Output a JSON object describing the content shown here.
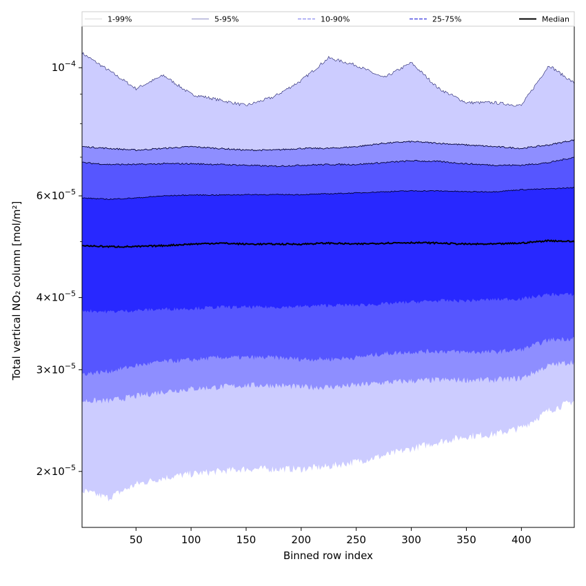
{
  "chart_data": {
    "type": "area",
    "title": "",
    "xlabel": "Binned row index",
    "ylabel": "Total vertical NO₂ column [mol/m²]",
    "yscale": "log",
    "xlim": [
      1,
      448
    ],
    "ylim": [
      1.6e-05,
      0.000118
    ],
    "grid": false,
    "legend_position": "top, full width",
    "x_ticks": [
      {
        "value": 50,
        "label": "50"
      },
      {
        "value": 100,
        "label": "100"
      },
      {
        "value": 150,
        "label": "150"
      },
      {
        "value": 200,
        "label": "200"
      },
      {
        "value": 250,
        "label": "250"
      },
      {
        "value": 300,
        "label": "300"
      },
      {
        "value": 350,
        "label": "350"
      },
      {
        "value": 400,
        "label": "400"
      }
    ],
    "y_ticks": [
      {
        "value": 2e-05,
        "mantissa": "2×10",
        "exponent": "−5"
      },
      {
        "value": 3e-05,
        "mantissa": "3×10",
        "exponent": "−5"
      },
      {
        "value": 4e-05,
        "mantissa": "4×10",
        "exponent": "−5"
      },
      {
        "value": 6e-05,
        "mantissa": "6×10",
        "exponent": "−5"
      },
      {
        "value": 0.0001,
        "mantissa": "10",
        "exponent": "−4"
      }
    ],
    "y_minor_ticks": [
      5e-05,
      7e-05,
      8e-05,
      9e-05
    ],
    "colors": {
      "band_1_99": "#ccccff",
      "band_5_95": "#8e8eff",
      "band_10_90": "#5656ff",
      "band_25_75": "#2828ff",
      "median": "#000000"
    },
    "legend": [
      {
        "label": "1-99%",
        "color": "#e0e0e0",
        "style": "solid"
      },
      {
        "label": "5-95%",
        "color": "#a0a0d0",
        "style": "solid"
      },
      {
        "label": "10-90%",
        "color": "#8888ee",
        "style": "dashed"
      },
      {
        "label": "25-75%",
        "color": "#3333dd",
        "style": "dashed"
      },
      {
        "label": "Median",
        "color": "#000000",
        "style": "solid"
      }
    ],
    "x": [
      1,
      25,
      50,
      75,
      100,
      125,
      150,
      175,
      200,
      225,
      250,
      275,
      300,
      325,
      350,
      375,
      400,
      425,
      448
    ],
    "series": [
      {
        "name": "1-99%",
        "lower": [
          1.85e-05,
          1.8e-05,
          1.9e-05,
          1.95e-05,
          1.98e-05,
          2e-05,
          2.02e-05,
          2.02e-05,
          2.02e-05,
          2.04e-05,
          2.08e-05,
          2.13e-05,
          2.19e-05,
          2.25e-05,
          2.3e-05,
          2.32e-05,
          2.38e-05,
          2.55e-05,
          2.65e-05
        ],
        "upper": [
          0.000106,
          9.9e-05,
          9.2e-05,
          9.7e-05,
          9e-05,
          8.8e-05,
          8.6e-05,
          8.9e-05,
          9.5e-05,
          0.000104,
          0.000101,
          9.6e-05,
          0.000102,
          9.2e-05,
          8.7e-05,
          8.7e-05,
          8.6e-05,
          0.000101,
          9.4e-05
        ]
      },
      {
        "name": "5-95%",
        "lower": [
          2.65e-05,
          2.65e-05,
          2.7e-05,
          2.75e-05,
          2.78e-05,
          2.8e-05,
          2.82e-05,
          2.82e-05,
          2.8e-05,
          2.8e-05,
          2.82e-05,
          2.85e-05,
          2.87e-05,
          2.88e-05,
          2.88e-05,
          2.88e-05,
          2.9e-05,
          3.05e-05,
          3.1e-05
        ],
        "upper": [
          7.3e-05,
          7.25e-05,
          7.2e-05,
          7.25e-05,
          7.3e-05,
          7.25e-05,
          7.2e-05,
          7.2e-05,
          7.25e-05,
          7.25e-05,
          7.3e-05,
          7.4e-05,
          7.45e-05,
          7.4e-05,
          7.35e-05,
          7.3e-05,
          7.25e-05,
          7.35e-05,
          7.5e-05
        ]
      },
      {
        "name": "10-90%",
        "lower": [
          2.95e-05,
          2.98e-05,
          3.05e-05,
          3.1e-05,
          3.12e-05,
          3.15e-05,
          3.15e-05,
          3.15e-05,
          3.13e-05,
          3.13e-05,
          3.15e-05,
          3.2e-05,
          3.22e-05,
          3.23e-05,
          3.22e-05,
          3.22e-05,
          3.25e-05,
          3.38e-05,
          3.4e-05
        ],
        "upper": [
          6.85e-05,
          6.8e-05,
          6.8e-05,
          6.82e-05,
          6.82e-05,
          6.8e-05,
          6.78e-05,
          6.75e-05,
          6.78e-05,
          6.8e-05,
          6.8e-05,
          6.85e-05,
          6.9e-05,
          6.88e-05,
          6.82e-05,
          6.78e-05,
          6.78e-05,
          6.85e-05,
          7e-05
        ]
      },
      {
        "name": "25-75%",
        "lower": [
          3.8e-05,
          3.78e-05,
          3.8e-05,
          3.82e-05,
          3.83e-05,
          3.85e-05,
          3.85e-05,
          3.85e-05,
          3.86e-05,
          3.88e-05,
          3.88e-05,
          3.9e-05,
          3.93e-05,
          3.95e-05,
          3.95e-05,
          3.97e-05,
          3.98e-05,
          4.05e-05,
          4.05e-05
        ],
        "upper": [
          5.95e-05,
          5.92e-05,
          5.95e-05,
          6e-05,
          6.02e-05,
          6.02e-05,
          6.03e-05,
          6.03e-05,
          6.03e-05,
          6.05e-05,
          6.07e-05,
          6.1e-05,
          6.12e-05,
          6.12e-05,
          6.1e-05,
          6.1e-05,
          6.15e-05,
          6.17e-05,
          6.2e-05
        ]
      },
      {
        "name": "Median",
        "values": [
          4.92e-05,
          4.9e-05,
          4.9e-05,
          4.92e-05,
          4.95e-05,
          4.97e-05,
          4.95e-05,
          4.95e-05,
          4.95e-05,
          4.97e-05,
          4.95e-05,
          4.97e-05,
          4.98e-05,
          4.97e-05,
          4.95e-05,
          4.95e-05,
          4.97e-05,
          5.02e-05,
          5e-05
        ]
      }
    ]
  }
}
